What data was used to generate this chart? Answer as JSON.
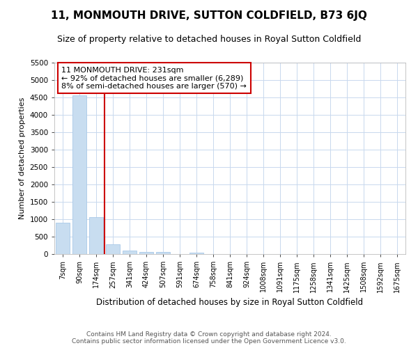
{
  "title": "11, MONMOUTH DRIVE, SUTTON COLDFIELD, B73 6JQ",
  "subtitle": "Size of property relative to detached houses in Royal Sutton Coldfield",
  "xlabel": "Distribution of detached houses by size in Royal Sutton Coldfield",
  "ylabel": "Number of detached properties",
  "footer_line1": "Contains HM Land Registry data © Crown copyright and database right 2024.",
  "footer_line2": "Contains public sector information licensed under the Open Government Licence v3.0.",
  "annotation_line1": "11 MONMOUTH DRIVE: 231sqm",
  "annotation_line2": "← 92% of detached houses are smaller (6,289)",
  "annotation_line3": "8% of semi-detached houses are larger (570) →",
  "bar_color": "#c8ddf0",
  "bar_edge_color": "#a8c8e8",
  "vline_color": "#cc0000",
  "annotation_box_edgecolor": "#cc0000",
  "annotation_box_facecolor": "#ffffff",
  "grid_color": "#c8d8ee",
  "background_color": "#ffffff",
  "categories": [
    "7sqm",
    "90sqm",
    "174sqm",
    "257sqm",
    "341sqm",
    "424sqm",
    "507sqm",
    "591sqm",
    "674sqm",
    "758sqm",
    "841sqm",
    "924sqm",
    "1008sqm",
    "1091sqm",
    "1175sqm",
    "1258sqm",
    "1341sqm",
    "1425sqm",
    "1508sqm",
    "1592sqm",
    "1675sqm"
  ],
  "values": [
    900,
    4560,
    1070,
    280,
    95,
    70,
    55,
    0,
    50,
    0,
    0,
    0,
    0,
    0,
    0,
    0,
    0,
    0,
    0,
    0,
    0
  ],
  "ylim": [
    0,
    5500
  ],
  "yticks": [
    0,
    500,
    1000,
    1500,
    2000,
    2500,
    3000,
    3500,
    4000,
    4500,
    5000,
    5500
  ],
  "vline_x_index": 2.5,
  "title_fontsize": 11,
  "subtitle_fontsize": 9,
  "ylabel_fontsize": 8,
  "xlabel_fontsize": 8.5,
  "tick_fontsize": 7,
  "footer_fontsize": 6.5,
  "annotation_fontsize": 8
}
